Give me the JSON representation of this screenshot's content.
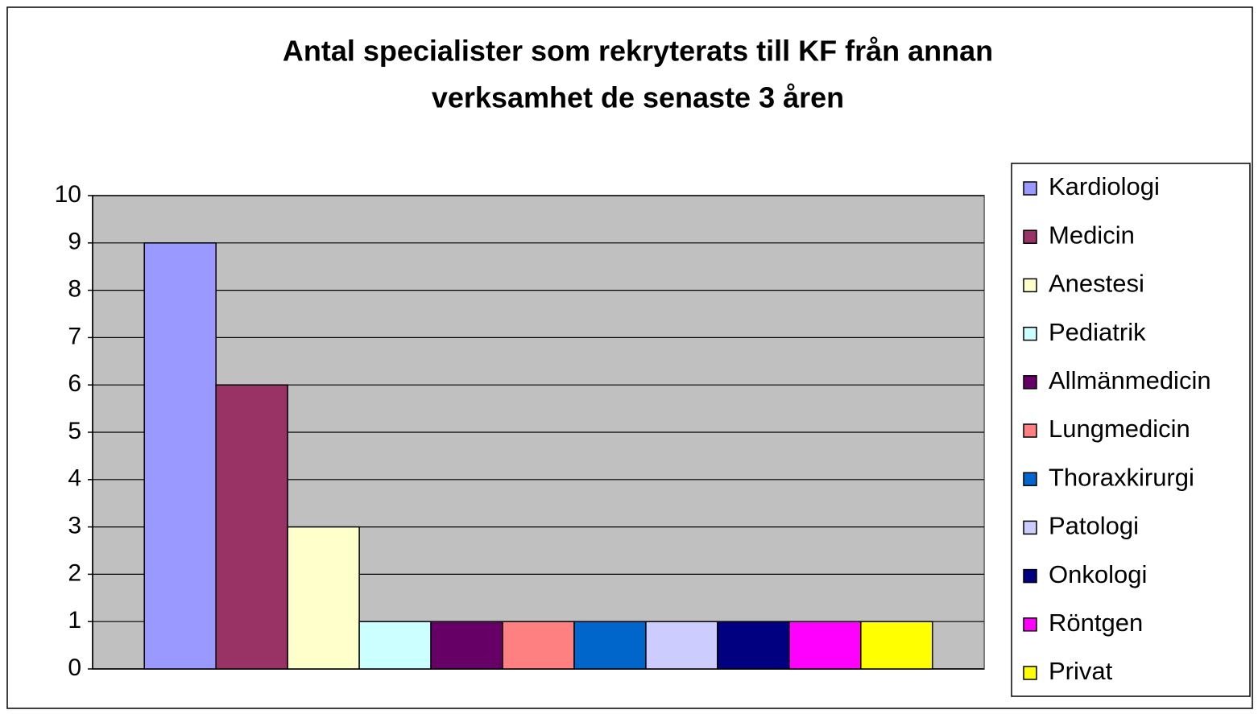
{
  "chart_data": {
    "type": "bar",
    "title": "Antal specialister som rekryterats till KF från annan verksamhet de senaste 3 åren",
    "title_lines": [
      "Antal specialister som rekryterats till KF från annan",
      "verksamhet de senaste 3 åren"
    ],
    "categories": [
      null
    ],
    "series": [
      {
        "name": "Kardiologi",
        "color": "#9999FF",
        "values": [
          9
        ]
      },
      {
        "name": "Medicin",
        "color": "#993366",
        "values": [
          6
        ]
      },
      {
        "name": "Anestesi",
        "color": "#FFFFCC",
        "values": [
          3
        ]
      },
      {
        "name": "Pediatrik",
        "color": "#CCFFFF",
        "values": [
          1
        ]
      },
      {
        "name": "Allmänmedicin",
        "color": "#660066",
        "values": [
          1
        ]
      },
      {
        "name": "Lungmedicin",
        "color": "#FF8080",
        "values": [
          1
        ]
      },
      {
        "name": "Thoraxkirurgi",
        "color": "#0066CC",
        "values": [
          1
        ]
      },
      {
        "name": "Patologi",
        "color": "#CCCCFF",
        "values": [
          1
        ]
      },
      {
        "name": "Onkologi",
        "color": "#000080",
        "values": [
          1
        ]
      },
      {
        "name": "Röntgen",
        "color": "#FF00FF",
        "values": [
          1
        ]
      },
      {
        "name": "Privat",
        "color": "#FFFF00",
        "values": [
          1
        ]
      }
    ],
    "ylim": [
      0,
      10
    ],
    "yticks": [
      0,
      1,
      2,
      3,
      4,
      5,
      6,
      7,
      8,
      9,
      10
    ],
    "grid": true,
    "legend": "right"
  }
}
